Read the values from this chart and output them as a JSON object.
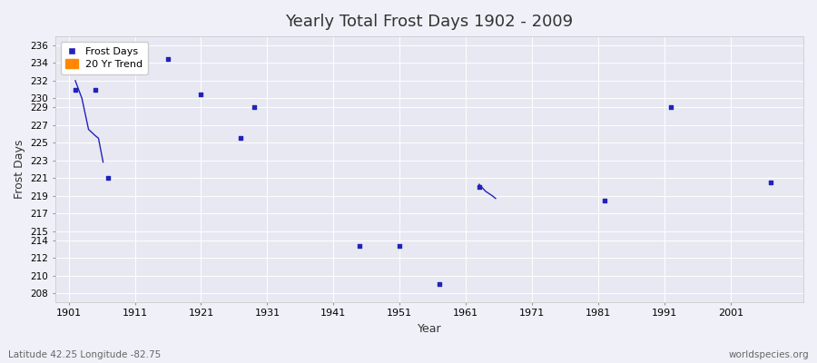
{
  "title": "Yearly Total Frost Days 1902 - 2009",
  "xlabel": "Year",
  "ylabel": "Frost Days",
  "xlim": [
    1899,
    2012
  ],
  "ylim": [
    207,
    237
  ],
  "background_color": "#f0f0f8",
  "plot_bg_color": "#e8e8f2",
  "frost_days_color": "#2222bb",
  "trend_color": "#ff8800",
  "scatter_marker": "s",
  "scatter_size": 12,
  "frost_points": [
    [
      1902,
      231.0
    ],
    [
      1905,
      231.0
    ],
    [
      1907,
      221.0
    ],
    [
      1916,
      234.5
    ],
    [
      1921,
      230.5
    ],
    [
      1927,
      225.5
    ],
    [
      1929,
      229.0
    ],
    [
      1945,
      213.3
    ],
    [
      1951,
      213.3
    ],
    [
      1957,
      209.0
    ],
    [
      1963,
      220.0
    ],
    [
      1982,
      218.5
    ],
    [
      1992,
      229.0
    ],
    [
      2007,
      220.5
    ]
  ],
  "trend1_x": [
    1902,
    1903,
    1904,
    1905,
    1905.5,
    1906.2
  ],
  "trend1_y": [
    232.0,
    230.0,
    226.5,
    225.8,
    225.5,
    222.8
  ],
  "trend2_x": [
    1963,
    1964,
    1965,
    1965.5
  ],
  "trend2_y": [
    220.3,
    219.5,
    219.0,
    218.7
  ],
  "yticks": [
    208,
    210,
    212,
    214,
    215,
    217,
    219,
    221,
    223,
    225,
    227,
    229,
    230,
    232,
    234,
    236
  ],
  "xticks": [
    1901,
    1911,
    1921,
    1931,
    1941,
    1951,
    1961,
    1971,
    1981,
    1991,
    2001
  ],
  "subtitle": "Latitude 42.25 Longitude -82.75",
  "watermark": "worldspecies.org"
}
